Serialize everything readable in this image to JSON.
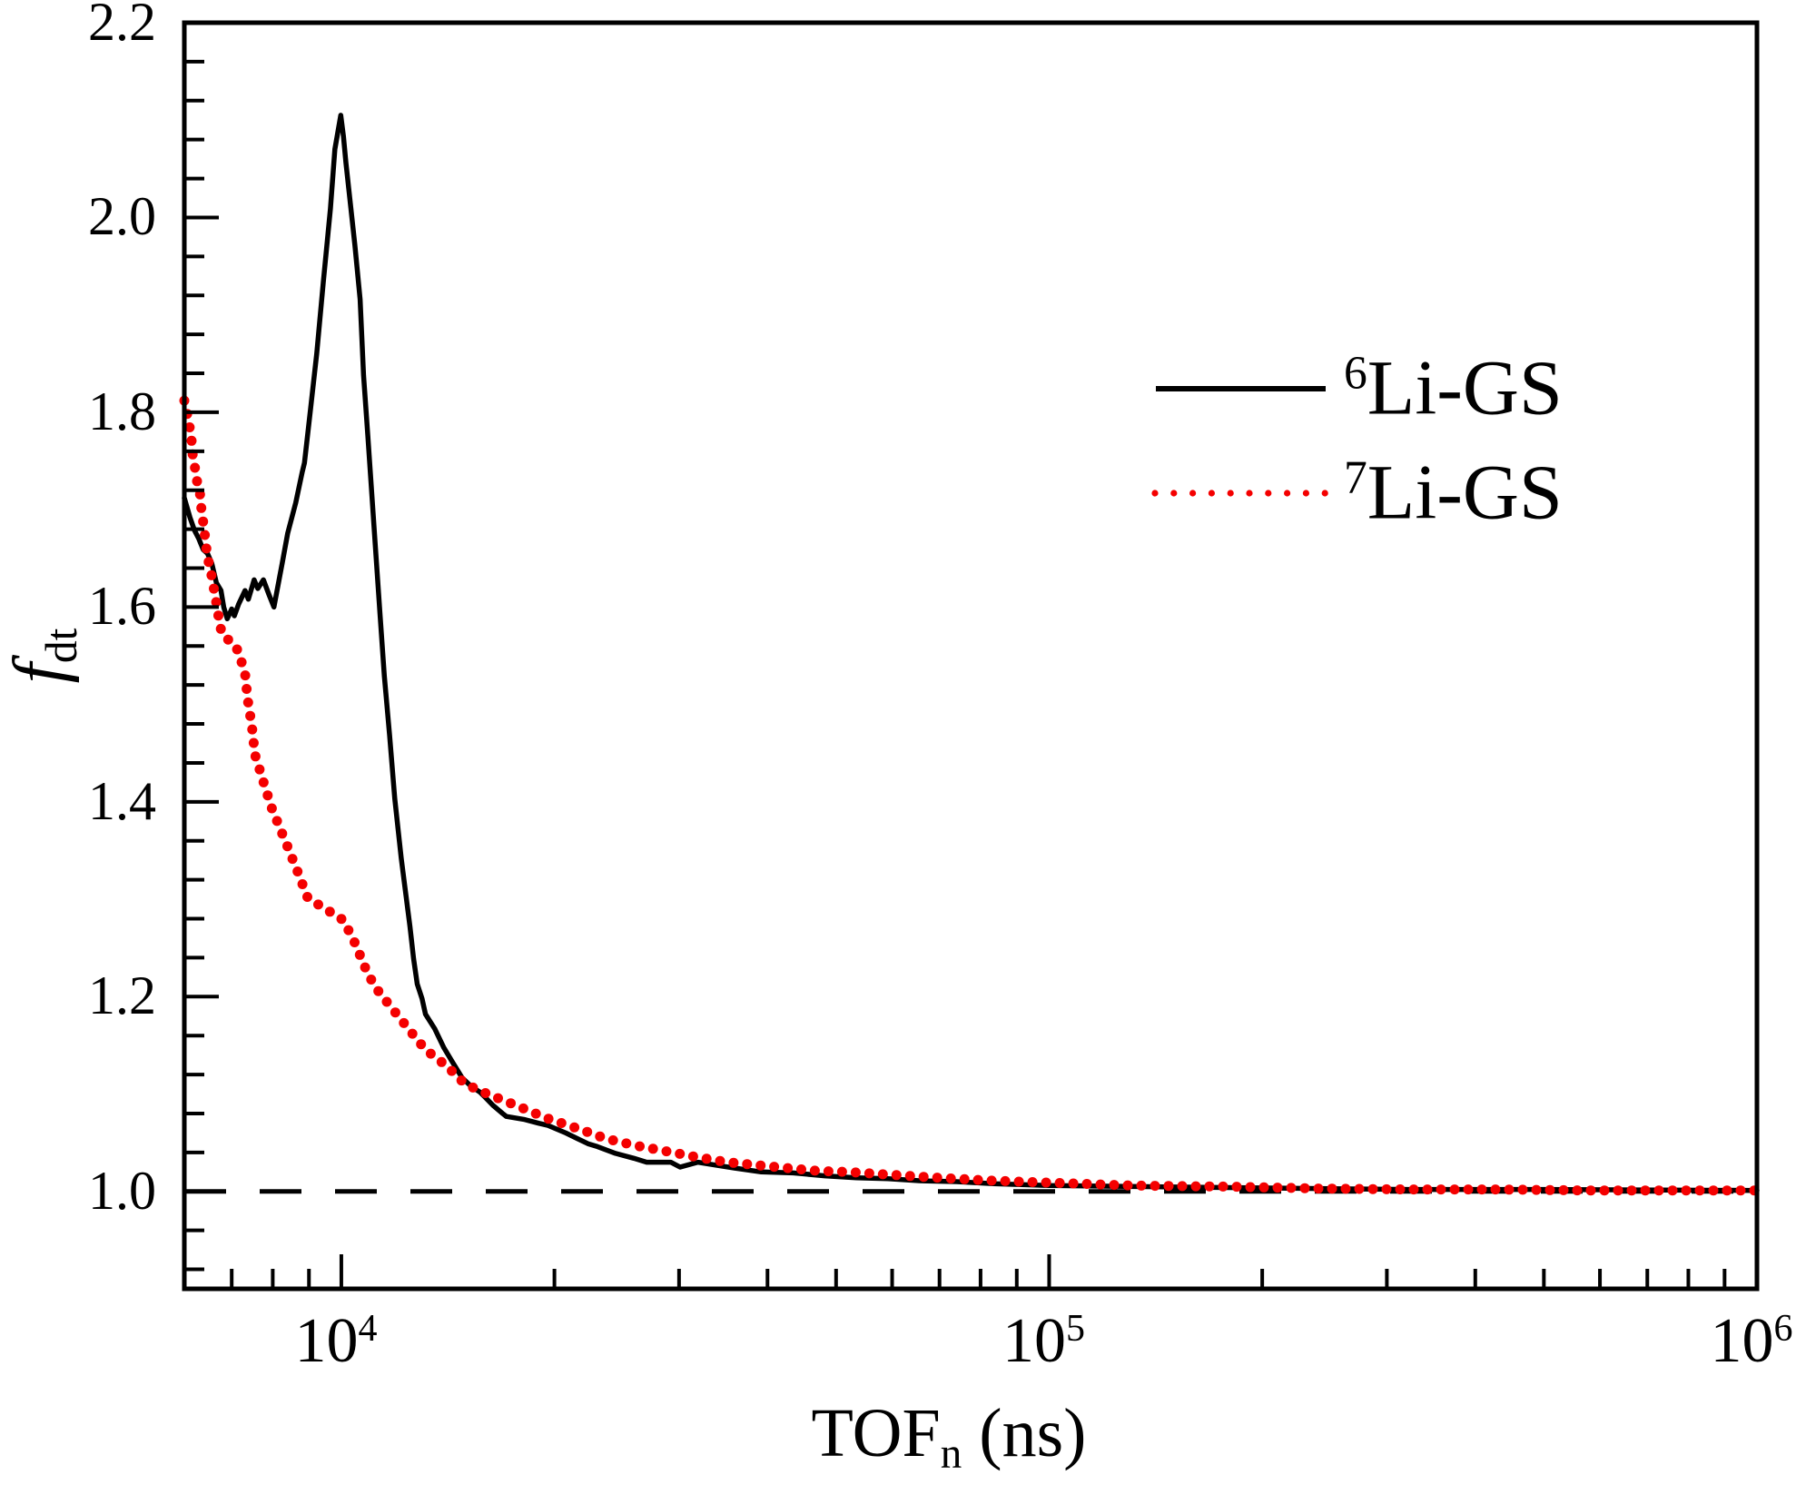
{
  "figure": {
    "background": "#ffffff",
    "axis_color": "#000000",
    "accent_red": "#f40000"
  },
  "axes": {
    "x": {
      "title_main": "TOF",
      "title_sub": "n",
      "title_rest": " (ns)",
      "scale": "log",
      "min": 6000,
      "max": 1000000,
      "major_ticks": [
        {
          "value": 10000,
          "base": "10",
          "exp": "4"
        },
        {
          "value": 100000,
          "base": "10",
          "exp": "5"
        },
        {
          "value": 1000000,
          "base": "10",
          "exp": "6"
        }
      ],
      "minor_ticks": [
        7000,
        8000,
        9000,
        20000,
        30000,
        40000,
        50000,
        60000,
        70000,
        80000,
        90000,
        200000,
        300000,
        400000,
        500000,
        600000,
        700000,
        800000,
        900000
      ]
    },
    "y": {
      "title_main": "f",
      "title_sub": "dt",
      "scale": "linear",
      "min": 0.9,
      "max": 2.2,
      "major_ticks": [
        {
          "value": 1.0,
          "label": "1.0"
        },
        {
          "value": 1.2,
          "label": "1.2"
        },
        {
          "value": 1.4,
          "label": "1.4"
        },
        {
          "value": 1.6,
          "label": "1.6"
        },
        {
          "value": 1.8,
          "label": "1.8"
        },
        {
          "value": 2.0,
          "label": "2.0"
        },
        {
          "value": 2.2,
          "label": "2.2"
        }
      ],
      "minor_ticks": [
        0.92,
        0.96,
        1.04,
        1.08,
        1.12,
        1.16,
        1.24,
        1.28,
        1.32,
        1.36,
        1.44,
        1.48,
        1.52,
        1.56,
        1.64,
        1.68,
        1.72,
        1.76,
        1.84,
        1.88,
        1.92,
        1.96,
        2.04,
        2.08,
        2.12,
        2.16
      ]
    }
  },
  "reference_line": {
    "y": 1.0,
    "style": "dashed",
    "color": "#000000"
  },
  "legend": {
    "items": [
      {
        "sup": "6",
        "label": "Li-GS",
        "color": "#000000",
        "style": "solid"
      },
      {
        "sup": "7",
        "label": "Li-GS",
        "color": "#f40000",
        "style": "dotted"
      }
    ]
  },
  "chart_data": {
    "type": "line",
    "xlabel": "TOF_n (ns)",
    "ylabel": "f_dt",
    "xscale": "log",
    "xlim": [
      6000,
      1000000
    ],
    "ylim": [
      0.9,
      2.2
    ],
    "grid": false,
    "legend_position": "upper right",
    "series": [
      {
        "name": "6Li-GS",
        "style": "solid",
        "color": "#000000",
        "points": [
          [
            6000,
            1.712
          ],
          [
            6110,
            1.692
          ],
          [
            6200,
            1.679
          ],
          [
            6290,
            1.67
          ],
          [
            6380,
            1.659
          ],
          [
            6470,
            1.655
          ],
          [
            6560,
            1.645
          ],
          [
            6660,
            1.625
          ],
          [
            6760,
            1.617
          ],
          [
            6820,
            1.6
          ],
          [
            6900,
            1.588
          ],
          [
            7000,
            1.598
          ],
          [
            7060,
            1.591
          ],
          [
            7160,
            1.603
          ],
          [
            7310,
            1.617
          ],
          [
            7390,
            1.608
          ],
          [
            7530,
            1.628
          ],
          [
            7620,
            1.619
          ],
          [
            7760,
            1.628
          ],
          [
            7900,
            1.613
          ],
          [
            8030,
            1.6
          ],
          [
            8250,
            1.645
          ],
          [
            8400,
            1.676
          ],
          [
            8620,
            1.707
          ],
          [
            8800,
            1.738
          ],
          [
            8870,
            1.748
          ],
          [
            9050,
            1.804
          ],
          [
            9230,
            1.86
          ],
          [
            9430,
            1.934
          ],
          [
            9650,
            2.009
          ],
          [
            9790,
            2.07
          ],
          [
            9980,
            2.105
          ],
          [
            10070,
            2.083
          ],
          [
            10150,
            2.056
          ],
          [
            10300,
            2.014
          ],
          [
            10450,
            1.972
          ],
          [
            10630,
            1.916
          ],
          [
            10750,
            1.838
          ],
          [
            10900,
            1.776
          ],
          [
            11050,
            1.713
          ],
          [
            11200,
            1.65
          ],
          [
            11350,
            1.589
          ],
          [
            11500,
            1.529
          ],
          [
            11700,
            1.468
          ],
          [
            11900,
            1.403
          ],
          [
            12150,
            1.342
          ],
          [
            12300,
            1.312
          ],
          [
            12500,
            1.272
          ],
          [
            12650,
            1.239
          ],
          [
            12800,
            1.213
          ],
          [
            13000,
            1.198
          ],
          [
            13150,
            1.182
          ],
          [
            13550,
            1.167
          ],
          [
            13950,
            1.148
          ],
          [
            14350,
            1.133
          ],
          [
            14800,
            1.117
          ],
          [
            15250,
            1.108
          ],
          [
            15700,
            1.102
          ],
          [
            15900,
            1.098
          ],
          [
            16400,
            1.088
          ],
          [
            16900,
            1.08
          ],
          [
            17100,
            1.077
          ],
          [
            18100,
            1.074
          ],
          [
            19000,
            1.07
          ],
          [
            19550,
            1.068
          ],
          [
            20750,
            1.06
          ],
          [
            22300,
            1.049
          ],
          [
            23000,
            1.046
          ],
          [
            24400,
            1.039
          ],
          [
            25900,
            1.034
          ],
          [
            27000,
            1.03
          ],
          [
            29200,
            1.03
          ],
          [
            30100,
            1.025
          ],
          [
            31900,
            1.03
          ],
          [
            33800,
            1.027
          ],
          [
            35900,
            1.024
          ],
          [
            39200,
            1.02
          ],
          [
            43500,
            1.019
          ],
          [
            48200,
            1.016
          ],
          [
            53400,
            1.014
          ],
          [
            59200,
            1.013
          ],
          [
            65600,
            1.011
          ],
          [
            74000,
            1.01
          ],
          [
            83400,
            1.008
          ],
          [
            100000,
            1.006
          ],
          [
            132500,
            1.005
          ],
          [
            178000,
            1.004
          ],
          [
            240000,
            1.003
          ],
          [
            322000,
            1.002
          ],
          [
            500000,
            1.002
          ],
          [
            1000000,
            1.001
          ]
        ]
      },
      {
        "name": "7Li-GS",
        "style": "dotted",
        "color": "#f40000",
        "points": [
          [
            6000,
            1.812
          ],
          [
            6090,
            1.79
          ],
          [
            6110,
            1.783
          ],
          [
            6140,
            1.773
          ],
          [
            6170,
            1.754
          ],
          [
            6200,
            1.749
          ],
          [
            6230,
            1.734
          ],
          [
            6310,
            1.718
          ],
          [
            6350,
            1.697
          ],
          [
            6410,
            1.678
          ],
          [
            6420,
            1.67
          ],
          [
            6450,
            1.659
          ],
          [
            6520,
            1.639
          ],
          [
            6550,
            1.634
          ],
          [
            6590,
            1.622
          ],
          [
            6630,
            1.613
          ],
          [
            6730,
            1.583
          ],
          [
            6760,
            1.577
          ],
          [
            6860,
            1.574
          ],
          [
            6940,
            1.564
          ],
          [
            7030,
            1.561
          ],
          [
            7120,
            1.557
          ],
          [
            7220,
            1.545
          ],
          [
            7320,
            1.529
          ],
          [
            7370,
            1.506
          ],
          [
            7410,
            1.496
          ],
          [
            7440,
            1.487
          ],
          [
            7500,
            1.47
          ],
          [
            7540,
            1.45
          ],
          [
            7750,
            1.422
          ],
          [
            7970,
            1.394
          ],
          [
            8210,
            1.371
          ],
          [
            8460,
            1.348
          ],
          [
            8710,
            1.325
          ],
          [
            8970,
            1.301
          ],
          [
            9500,
            1.29
          ],
          [
            10090,
            1.278
          ],
          [
            10330,
            1.262
          ],
          [
            10540,
            1.25
          ],
          [
            10700,
            1.236
          ],
          [
            11010,
            1.218
          ],
          [
            11270,
            1.206
          ],
          [
            11730,
            1.19
          ],
          [
            12100,
            1.178
          ],
          [
            12600,
            1.162
          ],
          [
            13100,
            1.147
          ],
          [
            13600,
            1.137
          ],
          [
            14100,
            1.129
          ],
          [
            14700,
            1.115
          ],
          [
            15400,
            1.106
          ],
          [
            16100,
            1.1
          ],
          [
            17700,
            1.088
          ],
          [
            19550,
            1.075
          ],
          [
            21700,
            1.064
          ],
          [
            23700,
            1.054
          ],
          [
            26100,
            1.047
          ],
          [
            28900,
            1.041
          ],
          [
            31900,
            1.035
          ],
          [
            35100,
            1.03
          ],
          [
            38700,
            1.027
          ],
          [
            42700,
            1.024
          ],
          [
            47100,
            1.021
          ],
          [
            51900,
            1.02
          ],
          [
            57200,
            1.018
          ],
          [
            63100,
            1.016
          ],
          [
            74000,
            1.013
          ],
          [
            83400,
            1.011
          ],
          [
            100000,
            1.009
          ],
          [
            132000,
            1.006
          ],
          [
            178000,
            1.005
          ],
          [
            240000,
            1.003
          ],
          [
            322000,
            1.002
          ],
          [
            430000,
            1.002
          ],
          [
            575000,
            1.001
          ],
          [
            770000,
            1.001
          ],
          [
            1000000,
            1.001
          ]
        ]
      }
    ]
  }
}
